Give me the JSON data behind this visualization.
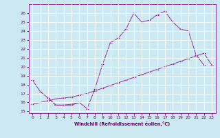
{
  "xlabel": "Windchill (Refroidissement éolien,°C)",
  "bg_color": "#cce8f0",
  "line_color": "#993399",
  "xlim": [
    -0.5,
    23.5
  ],
  "ylim": [
    14.8,
    27.0
  ],
  "yticks": [
    15,
    16,
    17,
    18,
    19,
    20,
    21,
    22,
    23,
    24,
    25,
    26
  ],
  "xticks": [
    0,
    1,
    2,
    3,
    4,
    5,
    6,
    7,
    8,
    9,
    10,
    11,
    12,
    13,
    14,
    15,
    16,
    17,
    18,
    19,
    20,
    21,
    22,
    23
  ],
  "series1_x": [
    0,
    1,
    2,
    3,
    4,
    5,
    6,
    7,
    8,
    9,
    10,
    11,
    12,
    13,
    14,
    15,
    16,
    17,
    18,
    19,
    20,
    21,
    22
  ],
  "series1_y": [
    18.5,
    17.2,
    16.5,
    15.7,
    15.7,
    15.7,
    16.0,
    15.3,
    17.5,
    20.3,
    22.7,
    23.2,
    24.2,
    26.0,
    25.0,
    25.2,
    25.8,
    26.2,
    25.0,
    24.2,
    24.0,
    21.3,
    20.2
  ],
  "series2_x": [
    2,
    3,
    4,
    5,
    6
  ],
  "series2_y": [
    16.5,
    15.7,
    15.7,
    15.8,
    16.0
  ],
  "series3_x": [
    0,
    1,
    2,
    3,
    4,
    5,
    6,
    7,
    8,
    9,
    10,
    11,
    12,
    13,
    14,
    15,
    16,
    17,
    18,
    19,
    20,
    21,
    22,
    23
  ],
  "series3_y": [
    15.8,
    16.0,
    16.2,
    16.4,
    16.5,
    16.6,
    16.8,
    17.0,
    17.3,
    17.6,
    17.9,
    18.2,
    18.5,
    18.8,
    19.1,
    19.4,
    19.7,
    20.0,
    20.3,
    20.6,
    20.9,
    21.2,
    21.5,
    20.2
  ]
}
